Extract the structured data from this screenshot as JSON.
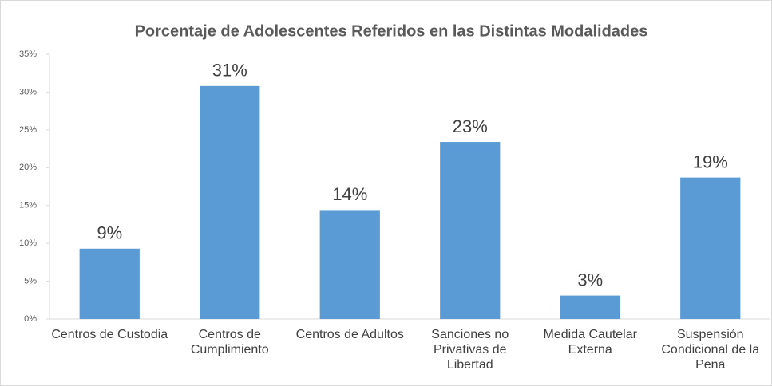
{
  "chart_data": {
    "type": "bar",
    "title": "Porcentaje de Adolescentes Referidos en las Distintas Modalidades",
    "categories": [
      "Centros de Custodia",
      "Centros de Cumplimiento",
      "Centros de Adultos",
      "Sanciones no Privativas de Libertad",
      "Medida Cautelar Externa",
      "Suspensión Condicional de la Pena"
    ],
    "values": [
      9.3,
      30.8,
      14.4,
      23.4,
      3.1,
      18.7
    ],
    "value_labels": [
      "9%",
      "31%",
      "14%",
      "23%",
      "3%",
      "19%"
    ],
    "color": "#5b9bd5",
    "ylim": [
      0,
      35
    ],
    "yticks": [
      {
        "value": 0,
        "label": "0%"
      },
      {
        "value": 5,
        "label": "5%"
      },
      {
        "value": 10,
        "label": "10%"
      },
      {
        "value": 15,
        "label": "15%"
      },
      {
        "value": 20,
        "label": "20%"
      },
      {
        "value": 25,
        "label": "25%"
      },
      {
        "value": 30,
        "label": "30%"
      },
      {
        "value": 35,
        "label": "35%"
      }
    ],
    "grid": false
  }
}
